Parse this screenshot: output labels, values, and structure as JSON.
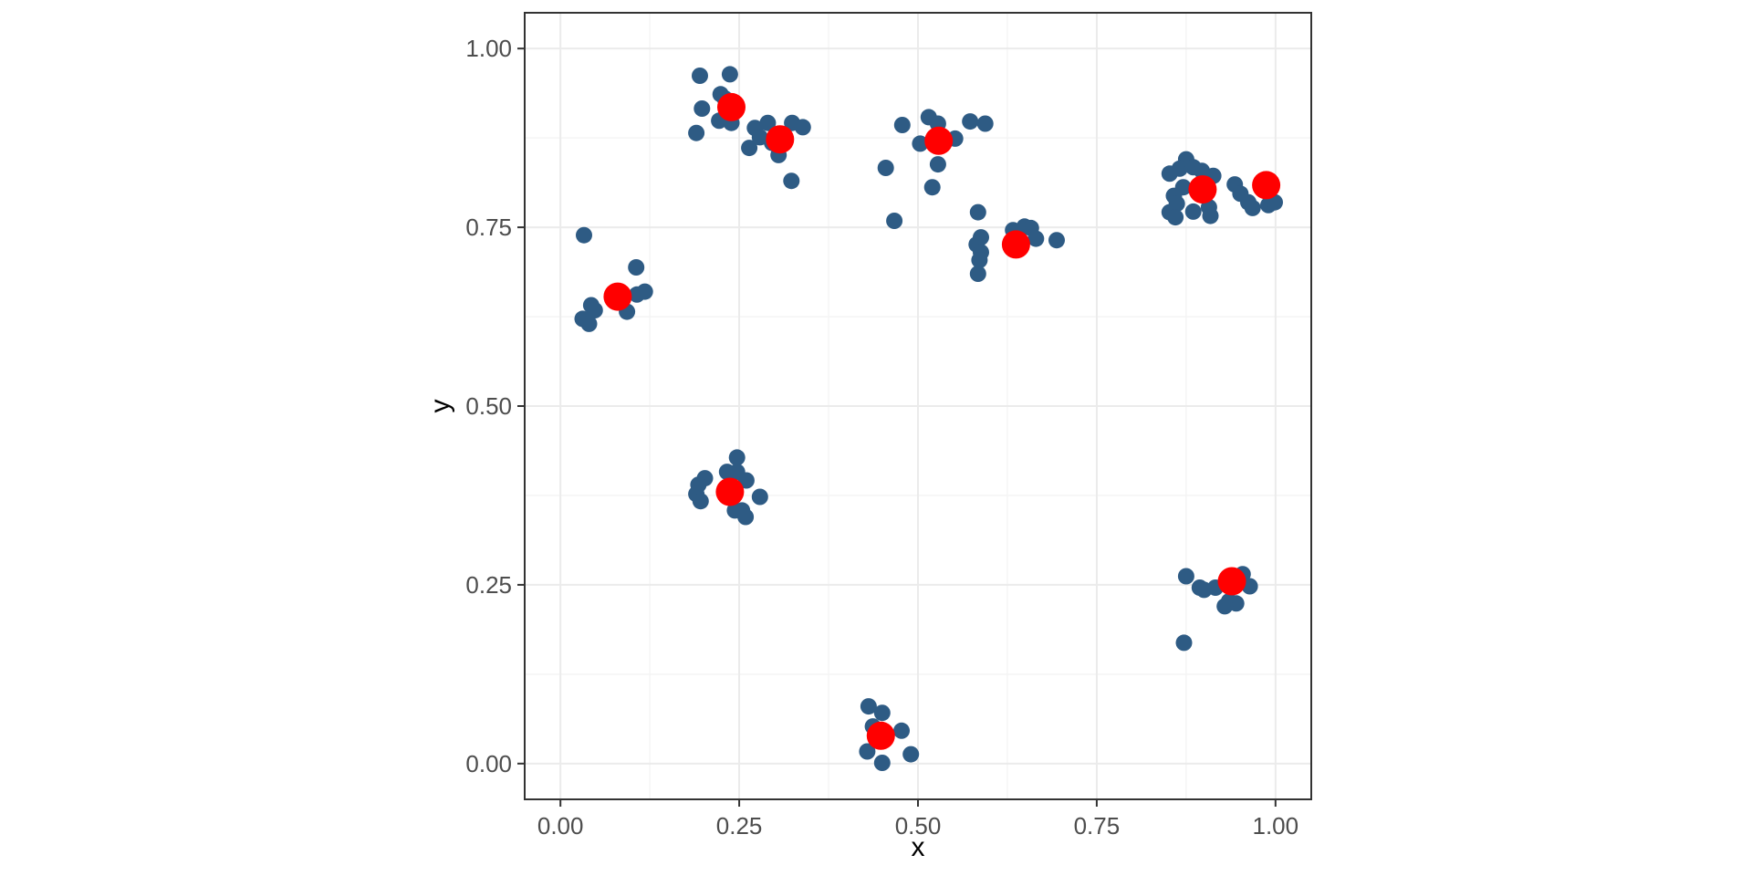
{
  "figure": {
    "background": "#FFFFFF",
    "description": "Scatter plot of clustered points with red cluster centers"
  },
  "chart_data": {
    "type": "scatter",
    "title": "",
    "xlabel": "x",
    "ylabel": "y",
    "xlim": [
      -0.05,
      1.05
    ],
    "ylim": [
      -0.05,
      1.05
    ],
    "x_major_ticks": [
      0.0,
      0.25,
      0.5,
      0.75,
      1.0
    ],
    "y_major_ticks": [
      0.0,
      0.25,
      0.5,
      0.75,
      1.0
    ],
    "x_tick_labels": [
      "0.00",
      "0.25",
      "0.50",
      "0.75",
      "1.00"
    ],
    "y_tick_labels": [
      "0.00",
      "0.25",
      "0.50",
      "0.75",
      "1.00"
    ],
    "x_minor_ticks": [
      0.125,
      0.375,
      0.625,
      0.875
    ],
    "y_minor_ticks": [
      0.125,
      0.375,
      0.625,
      0.875
    ],
    "grid": "major+minor",
    "legend": "none",
    "colors": {
      "points": "#2E5B84",
      "centers": "#FF0000",
      "grid_major": "#EBEBEB",
      "grid_minor": "#F4F4F4",
      "panel_border": "#333333",
      "tick_mark": "#333333",
      "tick_label": "#4D4D4D",
      "axis_title": "#000000",
      "panel_background": "#FFFFFF"
    },
    "series": [
      {
        "name": "points",
        "color": "#2E5B84",
        "radius": 9,
        "points": [
          [
            0.033,
            0.739
          ],
          [
            0.106,
            0.694
          ],
          [
            0.107,
            0.656
          ],
          [
            0.118,
            0.66
          ],
          [
            0.093,
            0.632
          ],
          [
            0.043,
            0.641
          ],
          [
            0.031,
            0.622
          ],
          [
            0.04,
            0.615
          ],
          [
            0.048,
            0.634
          ],
          [
            0.195,
            0.962
          ],
          [
            0.237,
            0.964
          ],
          [
            0.224,
            0.936
          ],
          [
            0.198,
            0.916
          ],
          [
            0.222,
            0.899
          ],
          [
            0.239,
            0.896
          ],
          [
            0.19,
            0.882
          ],
          [
            0.23,
            0.93
          ],
          [
            0.272,
            0.889
          ],
          [
            0.29,
            0.896
          ],
          [
            0.324,
            0.896
          ],
          [
            0.339,
            0.89
          ],
          [
            0.279,
            0.876
          ],
          [
            0.264,
            0.861
          ],
          [
            0.305,
            0.851
          ],
          [
            0.323,
            0.815
          ],
          [
            0.296,
            0.868
          ],
          [
            0.478,
            0.893
          ],
          [
            0.515,
            0.904
          ],
          [
            0.528,
            0.895
          ],
          [
            0.503,
            0.867
          ],
          [
            0.552,
            0.874
          ],
          [
            0.573,
            0.898
          ],
          [
            0.594,
            0.895
          ],
          [
            0.528,
            0.838
          ],
          [
            0.455,
            0.833
          ],
          [
            0.52,
            0.806
          ],
          [
            0.467,
            0.759
          ],
          [
            0.584,
            0.771
          ],
          [
            0.633,
            0.746
          ],
          [
            0.649,
            0.751
          ],
          [
            0.658,
            0.749
          ],
          [
            0.665,
            0.734
          ],
          [
            0.694,
            0.732
          ],
          [
            0.588,
            0.736
          ],
          [
            0.582,
            0.726
          ],
          [
            0.588,
            0.715
          ],
          [
            0.586,
            0.704
          ],
          [
            0.584,
            0.685
          ],
          [
            0.875,
            0.845
          ],
          [
            0.852,
            0.825
          ],
          [
            0.866,
            0.832
          ],
          [
            0.885,
            0.834
          ],
          [
            0.897,
            0.829
          ],
          [
            0.913,
            0.822
          ],
          [
            0.871,
            0.806
          ],
          [
            0.858,
            0.794
          ],
          [
            0.862,
            0.783
          ],
          [
            0.852,
            0.771
          ],
          [
            0.86,
            0.764
          ],
          [
            0.885,
            0.772
          ],
          [
            0.907,
            0.778
          ],
          [
            0.909,
            0.766
          ],
          [
            0.943,
            0.81
          ],
          [
            0.951,
            0.797
          ],
          [
            0.962,
            0.785
          ],
          [
            0.968,
            0.777
          ],
          [
            0.99,
            0.781
          ],
          [
            0.999,
            0.785
          ],
          [
            0.247,
            0.428
          ],
          [
            0.233,
            0.408
          ],
          [
            0.247,
            0.408
          ],
          [
            0.202,
            0.399
          ],
          [
            0.193,
            0.39
          ],
          [
            0.26,
            0.396
          ],
          [
            0.19,
            0.377
          ],
          [
            0.196,
            0.367
          ],
          [
            0.279,
            0.373
          ],
          [
            0.254,
            0.354
          ],
          [
            0.244,
            0.354
          ],
          [
            0.259,
            0.345
          ],
          [
            0.875,
            0.262
          ],
          [
            0.894,
            0.246
          ],
          [
            0.9,
            0.243
          ],
          [
            0.916,
            0.246
          ],
          [
            0.954,
            0.265
          ],
          [
            0.964,
            0.248
          ],
          [
            0.935,
            0.227
          ],
          [
            0.945,
            0.224
          ],
          [
            0.929,
            0.22
          ],
          [
            0.872,
            0.169
          ],
          [
            0.431,
            0.08
          ],
          [
            0.45,
            0.071
          ],
          [
            0.477,
            0.046
          ],
          [
            0.429,
            0.017
          ],
          [
            0.45,
            0.001
          ],
          [
            0.49,
            0.013
          ],
          [
            0.437,
            0.052
          ]
        ]
      },
      {
        "name": "cluster-centers",
        "color": "#FF0000",
        "radius": 15.5,
        "points": [
          [
            0.08,
            0.653
          ],
          [
            0.239,
            0.918
          ],
          [
            0.307,
            0.873
          ],
          [
            0.529,
            0.871
          ],
          [
            0.637,
            0.726
          ],
          [
            0.898,
            0.803
          ],
          [
            0.987,
            0.809
          ],
          [
            0.237,
            0.38
          ],
          [
            0.939,
            0.255
          ],
          [
            0.448,
            0.039
          ]
        ]
      }
    ]
  }
}
